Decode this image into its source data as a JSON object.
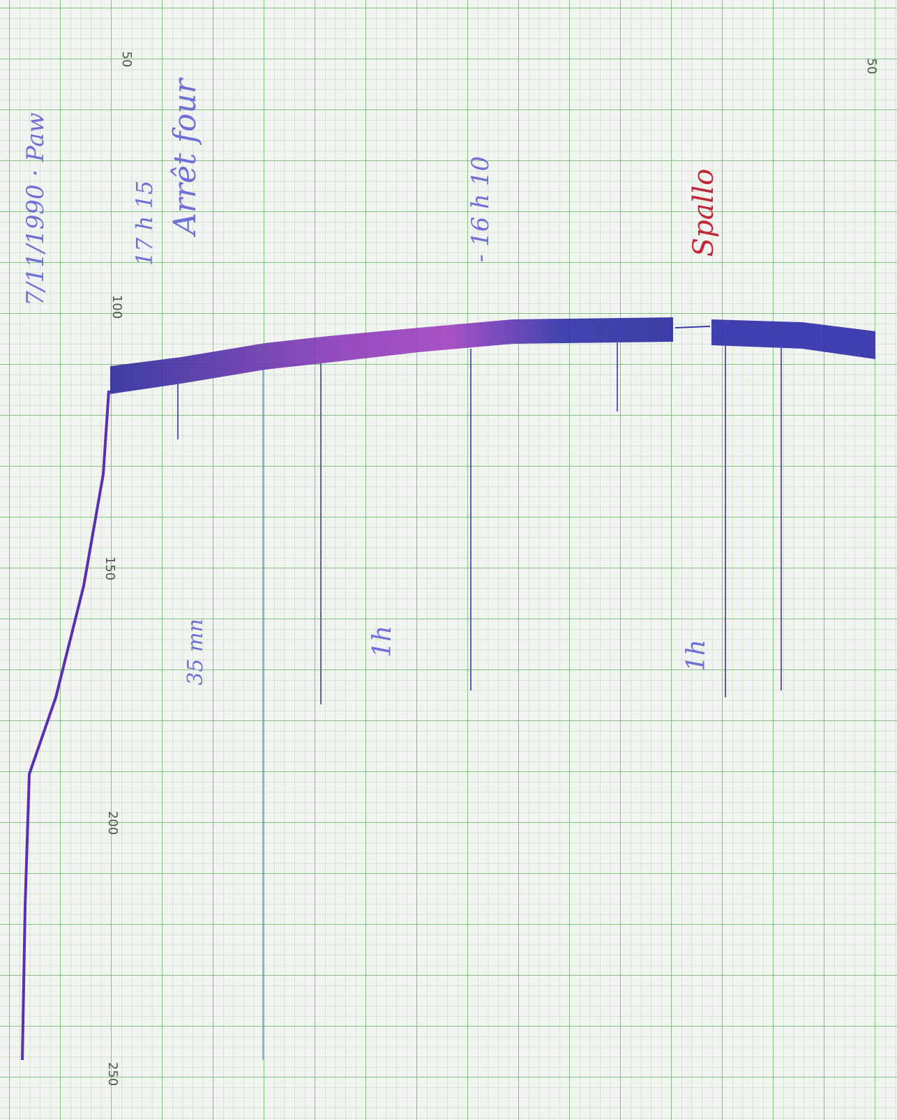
{
  "scale": {
    "labels": [
      "50",
      "100",
      "150",
      "200",
      "250"
    ],
    "right_label": "50"
  },
  "annotations": {
    "date": "7/11/1990 · Paw",
    "time_start": "17 h 15",
    "event": "Arrêt four",
    "time_mark": "- 16 h 10",
    "note": "Spallo",
    "duration_1": "35 mn",
    "duration_2": "1h",
    "duration_3": "1h"
  }
}
